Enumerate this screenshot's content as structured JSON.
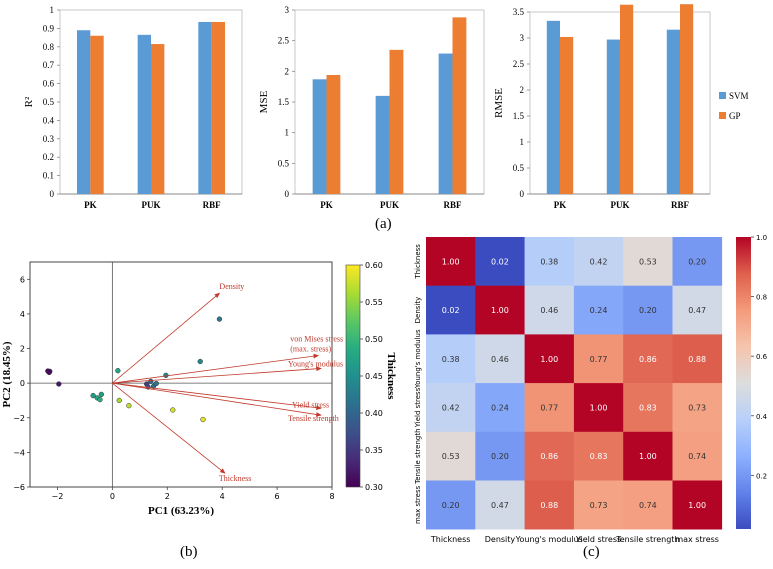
{
  "panel_labels": {
    "a": "(a)",
    "b": "(b)",
    "c": "(c)"
  },
  "colors": {
    "svm": "#5b9bd5",
    "gp": "#ed7d31",
    "arrow": "#c0392b",
    "axis": "#000000"
  },
  "chart_data": [
    {
      "id": "r2",
      "type": "bar",
      "title": "",
      "xlabel": "",
      "ylabel": "R²",
      "ylim": [
        0,
        1
      ],
      "yticks": [
        "0",
        "0.1",
        "0.2",
        "0.3",
        "0.4",
        "0.5",
        "0.6",
        "0.7",
        "0.8",
        "0.9",
        "1"
      ],
      "categories": [
        "PK",
        "PUK",
        "RBF"
      ],
      "series": [
        {
          "name": "SVM",
          "values": [
            0.89,
            0.865,
            0.935
          ]
        },
        {
          "name": "GP",
          "values": [
            0.86,
            0.815,
            0.935
          ]
        }
      ]
    },
    {
      "id": "mse",
      "type": "bar",
      "title": "",
      "xlabel": "",
      "ylabel": "MSE",
      "ylim": [
        0,
        3
      ],
      "yticks": [
        "0",
        "0.5",
        "1",
        "1.5",
        "2",
        "2.5",
        "3"
      ],
      "categories": [
        "PK",
        "PUK",
        "RBF"
      ],
      "series": [
        {
          "name": "SVM",
          "values": [
            1.87,
            1.6,
            2.29
          ]
        },
        {
          "name": "GP",
          "values": [
            1.94,
            2.35,
            2.88
          ]
        }
      ]
    },
    {
      "id": "rmse",
      "type": "bar",
      "title": "",
      "xlabel": "",
      "ylabel": "RMSE",
      "ylim": [
        0,
        3.5
      ],
      "yticks": [
        "0",
        "0.5",
        "1",
        "1.5",
        "2",
        "2.5",
        "3",
        "3.5"
      ],
      "categories": [
        "PK",
        "PUK",
        "RBF"
      ],
      "legend": [
        "SVM",
        "GP"
      ],
      "series": [
        {
          "name": "SVM",
          "values": [
            3.33,
            2.97,
            3.16
          ]
        },
        {
          "name": "GP",
          "values": [
            3.02,
            3.64,
            3.65
          ]
        }
      ]
    },
    {
      "id": "pca",
      "type": "scatter",
      "title": "",
      "xlabel": "PC1 (63.23%)",
      "ylabel": "PC2 (18.45%)",
      "xlim": [
        -3,
        8
      ],
      "ylim": [
        -6,
        7
      ],
      "xticks": [
        "−2",
        "0",
        "2",
        "4",
        "6",
        "8"
      ],
      "yticks": [
        "−6",
        "−4",
        "−2",
        "0",
        "2",
        "4",
        "6"
      ],
      "colorbar": {
        "label": "Thickness",
        "range": [
          0.3,
          0.6
        ],
        "ticks": [
          "0.30",
          "0.35",
          "0.40",
          "0.45",
          "0.50",
          "0.55",
          "0.60"
        ]
      },
      "points": [
        {
          "x": -2.35,
          "y": 0.7,
          "c": 0.3
        },
        {
          "x": -2.3,
          "y": 0.62,
          "c": 0.3
        },
        {
          "x": -2.28,
          "y": 0.68,
          "c": 0.31
        },
        {
          "x": -1.95,
          "y": -0.05,
          "c": 0.32
        },
        {
          "x": -0.7,
          "y": -0.72,
          "c": 0.47
        },
        {
          "x": -0.55,
          "y": -0.85,
          "c": 0.48
        },
        {
          "x": -0.4,
          "y": -0.65,
          "c": 0.47
        },
        {
          "x": -0.45,
          "y": -0.95,
          "c": 0.49
        },
        {
          "x": 0.2,
          "y": 0.72,
          "c": 0.48
        },
        {
          "x": 0.25,
          "y": -1.0,
          "c": 0.56
        },
        {
          "x": 0.6,
          "y": -1.3,
          "c": 0.57
        },
        {
          "x": 1.25,
          "y": -0.05,
          "c": 0.36
        },
        {
          "x": 1.3,
          "y": -0.22,
          "c": 0.38
        },
        {
          "x": 1.4,
          "y": 0.1,
          "c": 0.4
        },
        {
          "x": 1.5,
          "y": -0.18,
          "c": 0.41
        },
        {
          "x": 1.6,
          "y": -0.02,
          "c": 0.42
        },
        {
          "x": 1.95,
          "y": 0.45,
          "c": 0.44
        },
        {
          "x": 2.2,
          "y": -1.55,
          "c": 0.58
        },
        {
          "x": 3.2,
          "y": 1.25,
          "c": 0.44
        },
        {
          "x": 3.3,
          "y": -2.1,
          "c": 0.59
        },
        {
          "x": 3.9,
          "y": 3.7,
          "c": 0.42
        }
      ],
      "loadings": [
        {
          "label": "Density",
          "x": 3.9,
          "y": 5.2
        },
        {
          "label": "von Mises stress",
          "label2": "(max. stress)",
          "x": 7.5,
          "y": 1.6
        },
        {
          "label": "Young's modulus",
          "x": 7.6,
          "y": 0.85
        },
        {
          "label": "Yield stress",
          "x": 7.6,
          "y": -1.45
        },
        {
          "label": "Tensile strength",
          "x": 7.6,
          "y": -1.85
        },
        {
          "label": "Thickness",
          "x": 4.1,
          "y": -5.2
        }
      ]
    },
    {
      "id": "corr",
      "type": "heatmap",
      "title": "",
      "labels": [
        "Thickness",
        "Density",
        "Young's modulus",
        "Yield stress",
        "Tensile strength",
        "max stress"
      ],
      "matrix": [
        [
          1.0,
          0.02,
          0.38,
          0.42,
          0.53,
          0.2
        ],
        [
          0.02,
          1.0,
          0.46,
          0.24,
          0.2,
          0.47
        ],
        [
          0.38,
          0.46,
          1.0,
          0.77,
          0.86,
          0.88
        ],
        [
          0.42,
          0.24,
          0.77,
          1.0,
          0.83,
          0.73
        ],
        [
          0.53,
          0.2,
          0.86,
          0.83,
          1.0,
          0.74
        ],
        [
          0.2,
          0.47,
          0.88,
          0.73,
          0.74,
          1.0
        ]
      ],
      "colorbar": {
        "range": [
          0.02,
          1.0
        ],
        "ticks": [
          "0.2",
          "0.4",
          "0.6",
          "0.8",
          "1.0"
        ]
      }
    }
  ]
}
